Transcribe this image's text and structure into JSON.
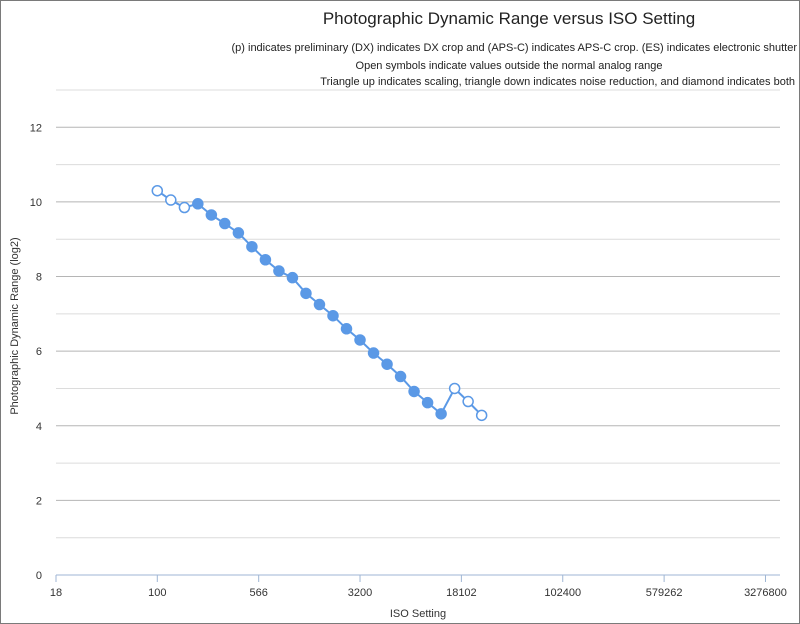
{
  "chart_data": {
    "type": "line",
    "title": "Photographic Dynamic Range versus ISO Setting",
    "subtitle_lines": [
      "(p) indicates preliminary (DX) indicates DX crop and (APS-C) indicates APS-C crop. (ES) indicates electronic shutter",
      "Open symbols indicate values outside the normal analog range",
      "Triangle up indicates scaling, triangle down indicates noise reduction, and diamond indicates both"
    ],
    "xlabel": "ISO Setting",
    "ylabel": "Photographic Dynamic Range (log2)",
    "x_scale": "log2",
    "x_ticks": [
      "18",
      "100",
      "566",
      "3200",
      "18102",
      "102400",
      "579262",
      "3276800"
    ],
    "x_tick_values": [
      17.7,
      100,
      566,
      3200,
      18102,
      102400,
      579262,
      3276800
    ],
    "xlim": [
      17.7,
      4200000
    ],
    "y_ticks": [
      "0",
      "2",
      "4",
      "6",
      "8",
      "10",
      "12"
    ],
    "y_tick_values": [
      0,
      2,
      4,
      6,
      8,
      10,
      12
    ],
    "ylim": [
      0,
      13
    ],
    "grid": true,
    "color": "#5b99e6",
    "series": [
      {
        "name": "",
        "points": [
          {
            "x": 100,
            "y": 10.3,
            "open": true
          },
          {
            "x": 126,
            "y": 10.05,
            "open": true
          },
          {
            "x": 159,
            "y": 9.85,
            "open": true
          },
          {
            "x": 200,
            "y": 9.95,
            "open": false
          },
          {
            "x": 252,
            "y": 9.65,
            "open": false
          },
          {
            "x": 317,
            "y": 9.42,
            "open": false
          },
          {
            "x": 400,
            "y": 9.17,
            "open": false
          },
          {
            "x": 504,
            "y": 8.8,
            "open": false
          },
          {
            "x": 635,
            "y": 8.45,
            "open": false
          },
          {
            "x": 800,
            "y": 8.15,
            "open": false
          },
          {
            "x": 1008,
            "y": 7.97,
            "open": false
          },
          {
            "x": 1270,
            "y": 7.55,
            "open": false
          },
          {
            "x": 1600,
            "y": 7.25,
            "open": false
          },
          {
            "x": 2016,
            "y": 6.95,
            "open": false
          },
          {
            "x": 2540,
            "y": 6.6,
            "open": false
          },
          {
            "x": 3200,
            "y": 6.3,
            "open": false
          },
          {
            "x": 4032,
            "y": 5.95,
            "open": false
          },
          {
            "x": 5080,
            "y": 5.65,
            "open": false
          },
          {
            "x": 6400,
            "y": 5.32,
            "open": false
          },
          {
            "x": 8063,
            "y": 4.92,
            "open": false
          },
          {
            "x": 10159,
            "y": 4.62,
            "open": false
          },
          {
            "x": 12800,
            "y": 4.32,
            "open": false
          },
          {
            "x": 16127,
            "y": 5.0,
            "open": true
          },
          {
            "x": 20319,
            "y": 4.65,
            "open": true
          },
          {
            "x": 25600,
            "y": 4.28,
            "open": true
          }
        ]
      }
    ]
  }
}
